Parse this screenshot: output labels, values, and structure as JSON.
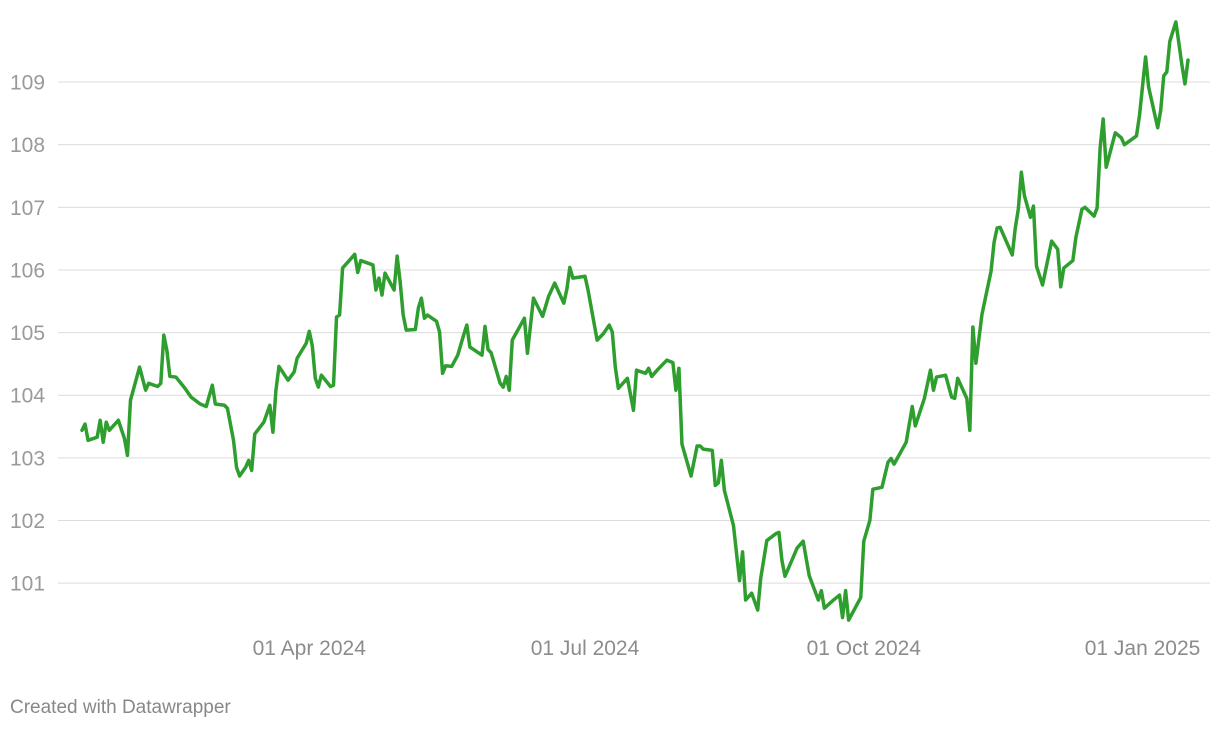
{
  "chart_data": {
    "type": "line",
    "footer": "Created with Datawrapper",
    "x": [
      "2024-01-17",
      "2024-01-18",
      "2024-01-19",
      "2024-01-22",
      "2024-01-23",
      "2024-01-24",
      "2024-01-25",
      "2024-01-26",
      "2024-01-29",
      "2024-01-31",
      "2024-02-01",
      "2024-02-02",
      "2024-02-05",
      "2024-02-07",
      "2024-02-08",
      "2024-02-11",
      "2024-02-12",
      "2024-02-13",
      "2024-02-14",
      "2024-02-15",
      "2024-02-17",
      "2024-02-20",
      "2024-02-22",
      "2024-02-25",
      "2024-02-27",
      "2024-02-29",
      "2024-03-01",
      "2024-03-04",
      "2024-03-05",
      "2024-03-07",
      "2024-03-08",
      "2024-03-09",
      "2024-03-11",
      "2024-03-12",
      "2024-03-13",
      "2024-03-14",
      "2024-03-17",
      "2024-03-19",
      "2024-03-20",
      "2024-03-21",
      "2024-03-22",
      "2024-03-25",
      "2024-03-27",
      "2024-03-28",
      "2024-03-31",
      "2024-04-01",
      "2024-04-02",
      "2024-04-03",
      "2024-04-04",
      "2024-04-05",
      "2024-04-08",
      "2024-04-09",
      "2024-04-10",
      "2024-04-11",
      "2024-04-12",
      "2024-04-16",
      "2024-04-17",
      "2024-04-18",
      "2024-04-22",
      "2024-04-23",
      "2024-04-24",
      "2024-04-25",
      "2024-04-26",
      "2024-04-29",
      "2024-04-30",
      "2024-05-01",
      "2024-05-02",
      "2024-05-03",
      "2024-05-06",
      "2024-05-07",
      "2024-05-08",
      "2024-05-09",
      "2024-05-10",
      "2024-05-13",
      "2024-05-14",
      "2024-05-15",
      "2024-05-16",
      "2024-05-18",
      "2024-05-20",
      "2024-05-22",
      "2024-05-23",
      "2024-05-24",
      "2024-05-28",
      "2024-05-29",
      "2024-05-30",
      "2024-05-31",
      "2024-06-03",
      "2024-06-04",
      "2024-06-05",
      "2024-06-06",
      "2024-06-07",
      "2024-06-11",
      "2024-06-12",
      "2024-06-14",
      "2024-06-17",
      "2024-06-19",
      "2024-06-21",
      "2024-06-24",
      "2024-06-25",
      "2024-06-26",
      "2024-06-27",
      "2024-07-01",
      "2024-07-02",
      "2024-07-05",
      "2024-07-06",
      "2024-07-07",
      "2024-07-09",
      "2024-07-10",
      "2024-07-11",
      "2024-07-12",
      "2024-07-15",
      "2024-07-17",
      "2024-07-18",
      "2024-07-21",
      "2024-07-22",
      "2024-07-23",
      "2024-07-25",
      "2024-07-28",
      "2024-07-30",
      "2024-07-31",
      "2024-08-01",
      "2024-08-02",
      "2024-08-05",
      "2024-08-07",
      "2024-08-08",
      "2024-08-09",
      "2024-08-12",
      "2024-08-13",
      "2024-08-14",
      "2024-08-15",
      "2024-08-16",
      "2024-08-19",
      "2024-08-21",
      "2024-08-22",
      "2024-08-23",
      "2024-08-25",
      "2024-08-27",
      "2024-08-28",
      "2024-08-30",
      "2024-09-02",
      "2024-09-03",
      "2024-09-04",
      "2024-09-05",
      "2024-09-09",
      "2024-09-11",
      "2024-09-13",
      "2024-09-16",
      "2024-09-17",
      "2024-09-18",
      "2024-09-21",
      "2024-09-23",
      "2024-09-24",
      "2024-09-25",
      "2024-09-26",
      "2024-09-30",
      "2024-10-01",
      "2024-10-03",
      "2024-10-04",
      "2024-10-07",
      "2024-10-09",
      "2024-10-10",
      "2024-10-11",
      "2024-10-15",
      "2024-10-17",
      "2024-10-18",
      "2024-10-21",
      "2024-10-23",
      "2024-10-24",
      "2024-10-25",
      "2024-10-28",
      "2024-10-30",
      "2024-10-31",
      "2024-11-01",
      "2024-11-04",
      "2024-11-05",
      "2024-11-06",
      "2024-11-07",
      "2024-11-09",
      "2024-11-12",
      "2024-11-13",
      "2024-11-14",
      "2024-11-15",
      "2024-11-19",
      "2024-11-20",
      "2024-11-21",
      "2024-11-22",
      "2024-11-23",
      "2024-11-25",
      "2024-11-26",
      "2024-11-27",
      "2024-11-29",
      "2024-12-02",
      "2024-12-04",
      "2024-12-05",
      "2024-12-06",
      "2024-12-09",
      "2024-12-10",
      "2024-12-12",
      "2024-12-13",
      "2024-12-16",
      "2024-12-17",
      "2024-12-18",
      "2024-12-19",
      "2024-12-20",
      "2024-12-23",
      "2024-12-25",
      "2024-12-26",
      "2024-12-30",
      "2024-12-31",
      "2025-01-02",
      "2025-01-03",
      "2025-01-06",
      "2025-01-07",
      "2025-01-08",
      "2025-01-09",
      "2025-01-10",
      "2025-01-12",
      "2025-01-14",
      "2025-01-15",
      "2025-01-16"
    ],
    "series": [
      {
        "color": "#2e9e2e",
        "values": [
          103.44,
          103.54,
          103.28,
          103.33,
          103.6,
          103.25,
          103.57,
          103.44,
          103.6,
          103.31,
          103.04,
          103.92,
          104.45,
          104.08,
          104.19,
          104.14,
          104.19,
          104.96,
          104.72,
          104.3,
          104.29,
          104.11,
          103.97,
          103.86,
          103.82,
          104.16,
          103.86,
          103.84,
          103.79,
          103.28,
          102.85,
          102.71,
          102.85,
          102.96,
          102.8,
          103.38,
          103.57,
          103.84,
          103.41,
          104.08,
          104.46,
          104.24,
          104.37,
          104.59,
          104.83,
          105.02,
          104.79,
          104.27,
          104.13,
          104.32,
          104.14,
          104.16,
          105.25,
          105.28,
          106.03,
          106.25,
          105.96,
          106.15,
          106.08,
          105.68,
          105.87,
          105.6,
          105.95,
          105.68,
          106.22,
          105.81,
          105.28,
          105.04,
          105.05,
          105.39,
          105.55,
          105.23,
          105.28,
          105.18,
          105.01,
          104.35,
          104.47,
          104.46,
          104.64,
          104.97,
          105.12,
          104.77,
          104.64,
          105.1,
          104.73,
          104.68,
          104.19,
          104.13,
          104.3,
          104.08,
          104.88,
          105.23,
          104.67,
          105.55,
          105.26,
          105.58,
          105.79,
          105.47,
          105.69,
          106.04,
          105.87,
          105.9,
          105.68,
          104.88,
          104.93,
          104.98,
          105.12,
          105.01,
          104.45,
          104.11,
          104.27,
          103.76,
          104.4,
          104.35,
          104.43,
          104.3,
          104.41,
          104.56,
          104.52,
          104.08,
          104.43,
          103.22,
          102.71,
          103.19,
          103.19,
          103.14,
          103.12,
          102.56,
          102.6,
          102.96,
          102.48,
          101.92,
          101.04,
          101.5,
          100.73,
          100.84,
          100.57,
          101.08,
          101.68,
          101.79,
          101.81,
          101.36,
          101.11,
          101.56,
          101.67,
          101.12,
          100.73,
          100.88,
          100.6,
          100.73,
          100.81,
          100.45,
          100.88,
          100.41,
          100.77,
          101.67,
          102.0,
          102.5,
          102.53,
          102.93,
          102.99,
          102.9,
          103.25,
          103.82,
          103.51,
          103.95,
          104.4,
          104.08,
          104.29,
          104.32,
          103.97,
          103.95,
          104.27,
          103.95,
          103.44,
          105.09,
          104.51,
          105.29,
          105.98,
          106.44,
          106.67,
          106.68,
          106.24,
          106.67,
          106.97,
          107.56,
          107.19,
          106.84,
          107.02,
          106.06,
          105.76,
          106.46,
          106.33,
          105.73,
          106.03,
          106.15,
          106.52,
          106.97,
          107.0,
          106.86,
          106.99,
          107.95,
          108.41,
          107.64,
          108.19,
          108.11,
          108.0,
          108.14,
          108.47,
          109.4,
          108.92,
          108.27,
          108.55,
          109.1,
          109.16,
          109.65,
          109.96,
          109.27,
          108.97,
          109.35
        ]
      }
    ],
    "xlim": [
      "2024-01-17",
      "2025-01-16"
    ],
    "xticks": [
      {
        "value": "2024-04-01",
        "label": "01 Apr 2024"
      },
      {
        "value": "2024-07-01",
        "label": "01 Jul 2024"
      },
      {
        "value": "2024-10-01",
        "label": "01 Oct 2024"
      },
      {
        "value": "2025-01-01",
        "label": "01 Jan 2025"
      }
    ],
    "ylim": [
      100.3,
      110
    ],
    "yticks": [
      101,
      102,
      103,
      104,
      105,
      106,
      107,
      108,
      109
    ],
    "grid": true
  }
}
